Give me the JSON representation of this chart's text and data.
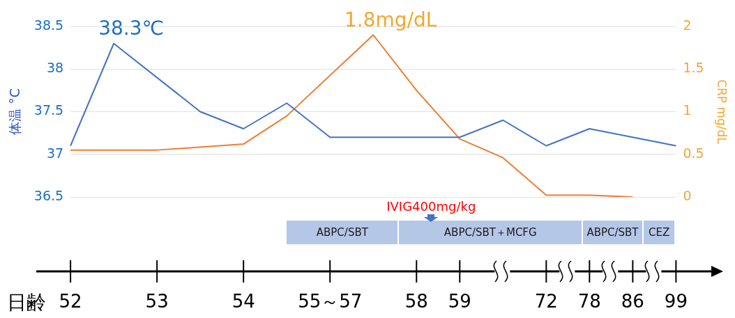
{
  "chart_data": {
    "type": "line",
    "xlabel": "日齢",
    "ylabel": "体温 °C",
    "y2label": "CRP mg/dL",
    "categories": [
      "52",
      null,
      "53",
      null,
      "54",
      null,
      "55～57",
      null,
      "58",
      "59",
      null,
      "72",
      "78",
      "86",
      "99"
    ],
    "series": [
      {
        "color": "#4472c4",
        "values": [
          37.1,
          38.3,
          null,
          37.5,
          37.3,
          37.6,
          37.2,
          null,
          null,
          37.2,
          37.4,
          37.1,
          37.3,
          null,
          37.1
        ]
      },
      {
        "color": "#ed7d31",
        "axis": "y2",
        "values": [
          0.55,
          null,
          0.55,
          null,
          0.62,
          0.95,
          null,
          1.9,
          1.25,
          0.68,
          0.46,
          0.02,
          0.02,
          0,
          null
        ]
      }
    ],
    "ylim": [
      36.5,
      38.5
    ],
    "yticks": [
      36.5,
      37,
      37.5,
      38,
      38.5
    ],
    "y2lim": [
      0,
      2
    ],
    "y2ticks": [
      0,
      0.5,
      1,
      1.5,
      2
    ],
    "grid": "y",
    "marker": "none",
    "line_style": "solid",
    "annotations": [
      "38.3℃",
      "1.8mg/dL",
      "IVIG400mg/kg",
      "ABPC/SBT",
      "ABPC/SBT＋MCFG",
      "ABPC/SBT",
      "CEZ"
    ]
  }
}
